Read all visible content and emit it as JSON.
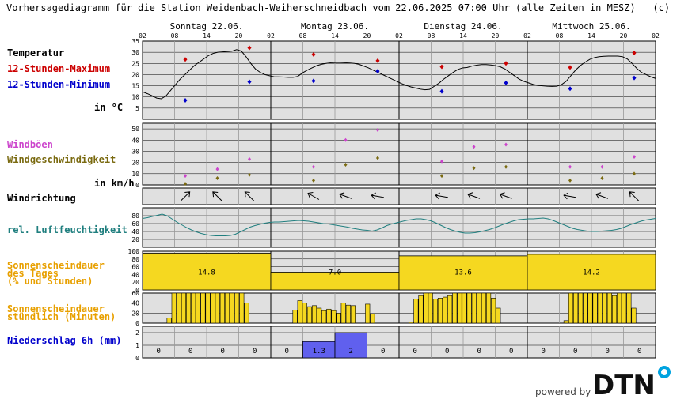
{
  "header": {
    "title": "Vorhersagediagramm für die Station Weidenbach-Weiherschneidbach vom 22.06.2025 07:00 Uhr (alle Zeiten in MESZ)   (c) DTN"
  },
  "labels": {
    "temp": "Temperatur",
    "tmax": "12-Stunden-Maximum",
    "tmin": "12-Stunden-Minimum",
    "temp_unit": "in °C",
    "gust": "Windböen",
    "wind": "Windgeschwindigkeit",
    "wind_unit": "in km/h",
    "winddir": "Windrichtung",
    "rh": "rel. Luftfeuchtigkeit",
    "sun_day_1": "Sonnenscheindauer",
    "sun_day_2": "des Tages",
    "sun_day_3": "(% und Stunden)",
    "sun_hour_1": "Sonnenscheindauer",
    "sun_hour_2": "stündlich (Minuten)",
    "precip": "Niederschlag 6h (mm)"
  },
  "colors": {
    "panel_bg": "#e0e0e0",
    "temp": "#000000",
    "tmax": "#cc0000",
    "tmin": "#0000cc",
    "gust": "#cc44cc",
    "wind": "#7a6a10",
    "rh": "#207f7f",
    "sun": "#f5d820",
    "precip": "#6060ee",
    "label_sun": "#e8a000",
    "label_rh": "#207f7f",
    "label_wind": "#7a6a10",
    "label_gust": "#cc44cc"
  },
  "brand": {
    "powered_by": "powered by",
    "logo": "DTN"
  },
  "chart_data": {
    "type": "meteogram",
    "days": [
      "Sonntag 22.06.",
      "Montag 23.06.",
      "Dienstag 24.06.",
      "Mittwoch 25.06."
    ],
    "hour_ticks": [
      "02",
      "08",
      "14",
      "20",
      "02",
      "08",
      "14",
      "20",
      "02",
      "08",
      "14",
      "20",
      "02",
      "08",
      "14",
      "20",
      "02"
    ],
    "temperature": {
      "yticks": [
        5,
        10,
        15,
        20,
        25,
        30,
        35
      ],
      "ylim": [
        0,
        35
      ],
      "hourly": [
        12.3,
        11.5,
        10.6,
        9.5,
        9.2,
        10.5,
        13,
        15.5,
        18,
        20,
        22,
        24,
        25.5,
        27,
        28.5,
        29.5,
        30,
        30.2,
        30.3,
        30.5,
        31.2,
        30.5,
        28,
        25,
        22.5,
        21,
        20,
        19.5,
        19,
        19,
        18.9,
        18.8,
        18.8,
        19.2,
        20.8,
        22,
        23,
        24,
        24.6,
        25,
        25.3,
        25.4,
        25.4,
        25.3,
        25.2,
        25,
        24.6,
        23.8,
        23,
        22,
        21,
        20,
        19,
        18,
        17,
        16,
        15.2,
        14.5,
        14,
        13.5,
        13.2,
        13.4,
        14.8,
        16.2,
        18,
        19.5,
        21,
        22.3,
        23,
        23.2,
        23.8,
        24.2,
        24.5,
        24.5,
        24.3,
        24,
        23.5,
        22.5,
        21,
        19.5,
        18,
        17,
        16.3,
        15.6,
        15.2,
        15,
        14.8,
        14.7,
        14.8,
        15.5,
        17,
        19.5,
        22,
        24,
        25.5,
        26.8,
        27.6,
        28,
        28.2,
        28.3,
        28.3,
        28.3,
        28,
        27,
        25,
        22.8,
        21,
        20,
        19,
        18.3
      ],
      "max_12h": [
        {
          "hour": 8,
          "value": 26.8
        },
        {
          "hour": 20,
          "value": 32
        },
        {
          "hour": 32,
          "value": 29
        },
        {
          "hour": 44,
          "value": 26.2
        },
        {
          "hour": 56,
          "value": 23.5
        },
        {
          "hour": 68,
          "value": 25
        },
        {
          "hour": 80,
          "value": 23.2
        },
        {
          "hour": 92,
          "value": 29.7
        }
      ],
      "min_12h": [
        {
          "hour": 8,
          "value": 8.5
        },
        {
          "hour": 20,
          "value": 16.8
        },
        {
          "hour": 32,
          "value": 17.2
        },
        {
          "hour": 44,
          "value": 21.5
        },
        {
          "hour": 56,
          "value": 12.5
        },
        {
          "hour": 68,
          "value": 16.3
        },
        {
          "hour": 80,
          "value": 13.7
        },
        {
          "hour": 92,
          "value": 18.5
        }
      ]
    },
    "wind": {
      "yticks": [
        0,
        10,
        20,
        30,
        40,
        50
      ],
      "ylim": [
        0,
        55
      ],
      "gusts": [
        {
          "hour": 8,
          "value": 8
        },
        {
          "hour": 14,
          "value": 14
        },
        {
          "hour": 20,
          "value": 23
        },
        {
          "hour": 32,
          "value": 16
        },
        {
          "hour": 38,
          "value": 40
        },
        {
          "hour": 44,
          "value": 49
        },
        {
          "hour": 56,
          "value": 21
        },
        {
          "hour": 62,
          "value": 34
        },
        {
          "hour": 68,
          "value": 36
        },
        {
          "hour": 80,
          "value": 16
        },
        {
          "hour": 86,
          "value": 16
        },
        {
          "hour": 92,
          "value": 25
        }
      ],
      "speed": [
        {
          "hour": 8,
          "value": 1
        },
        {
          "hour": 14,
          "value": 6
        },
        {
          "hour": 20,
          "value": 9
        },
        {
          "hour": 32,
          "value": 4
        },
        {
          "hour": 38,
          "value": 18
        },
        {
          "hour": 44,
          "value": 24
        },
        {
          "hour": 56,
          "value": 8
        },
        {
          "hour": 62,
          "value": 15
        },
        {
          "hour": 68,
          "value": 16
        },
        {
          "hour": 80,
          "value": 4
        },
        {
          "hour": 86,
          "value": 6
        },
        {
          "hour": 92,
          "value": 10
        }
      ]
    },
    "wind_direction": [
      {
        "hour": 8,
        "arrow_deg": -45
      },
      {
        "hour": 14,
        "arrow_deg": -135
      },
      {
        "hour": 20,
        "arrow_deg": -135
      },
      {
        "hour": 32,
        "arrow_deg": -150
      },
      {
        "hour": 38,
        "arrow_deg": -160
      },
      {
        "hour": 44,
        "arrow_deg": -170
      },
      {
        "hour": 56,
        "arrow_deg": -170
      },
      {
        "hour": 62,
        "arrow_deg": -160
      },
      {
        "hour": 68,
        "arrow_deg": -160
      },
      {
        "hour": 80,
        "arrow_deg": -170
      },
      {
        "hour": 86,
        "arrow_deg": -160
      },
      {
        "hour": 92,
        "arrow_deg": -135
      }
    ],
    "humidity": {
      "yticks": [
        20,
        40,
        60,
        80
      ],
      "ylim": [
        0,
        100
      ],
      "hourly": [
        73,
        75,
        78,
        81,
        84,
        80,
        72,
        64,
        57,
        50,
        44,
        39,
        35,
        32,
        30,
        29,
        29,
        29,
        30,
        33,
        39,
        45,
        51,
        55,
        58,
        61,
        63,
        64,
        64,
        65,
        66,
        67,
        68,
        67,
        66,
        64,
        62,
        60,
        59,
        57,
        55,
        53,
        51,
        48,
        46,
        44,
        43,
        41,
        44,
        49,
        55,
        59,
        62,
        65,
        68,
        70,
        72,
        72,
        70,
        67,
        62,
        56,
        50,
        45,
        41,
        38,
        36,
        36,
        37,
        39,
        42,
        45,
        49,
        54,
        59,
        63,
        67,
        70,
        71,
        72,
        72,
        73,
        74,
        72,
        68,
        63,
        58,
        53,
        48,
        45,
        43,
        41,
        40,
        40,
        41,
        42,
        43,
        45,
        48,
        53,
        58,
        62,
        66,
        69,
        71,
        73
      ]
    },
    "sunshine_daily": {
      "yticks": [
        0,
        20,
        40,
        60,
        80,
        100
      ],
      "percent": [
        95,
        46,
        88,
        92
      ],
      "hours": [
        "14.8",
        "7.0",
        "13.6",
        "14.2"
      ]
    },
    "sunshine_hourly": {
      "yticks": [
        0,
        20,
        40,
        60
      ],
      "ylim": [
        0,
        60
      ],
      "minutes": [
        0,
        0,
        0,
        0,
        0,
        10,
        60,
        60,
        60,
        60,
        60,
        60,
        60,
        60,
        60,
        60,
        60,
        60,
        60,
        60,
        60,
        40,
        0,
        0,
        0,
        0,
        0,
        0,
        0,
        0,
        0,
        26,
        45,
        40,
        33,
        35,
        30,
        25,
        28,
        25,
        20,
        40,
        36,
        35,
        0,
        0,
        38,
        18,
        0,
        0,
        0,
        0,
        0,
        0,
        0,
        2,
        48,
        55,
        60,
        60,
        48,
        50,
        52,
        55,
        60,
        60,
        60,
        60,
        60,
        60,
        60,
        60,
        50,
        30,
        0,
        0,
        0,
        0,
        0,
        0,
        0,
        0,
        0,
        0,
        0,
        0,
        0,
        5,
        60,
        60,
        60,
        60,
        60,
        60,
        60,
        60,
        60,
        55,
        60,
        60,
        60,
        30,
        0,
        0,
        0,
        0
      ]
    },
    "precip_6h": {
      "ylim": [
        0,
        2.5
      ],
      "yticks": [
        0,
        1,
        2
      ],
      "labels": [
        "0",
        "0",
        "0",
        "0",
        "0",
        "1.3",
        "2",
        "0",
        "0",
        "0",
        "0",
        "0",
        "0",
        "0",
        "0",
        "0"
      ],
      "values": [
        0,
        0,
        0,
        0,
        0,
        1.3,
        2,
        0,
        0,
        0,
        0,
        0,
        0,
        0,
        0,
        0
      ]
    }
  }
}
